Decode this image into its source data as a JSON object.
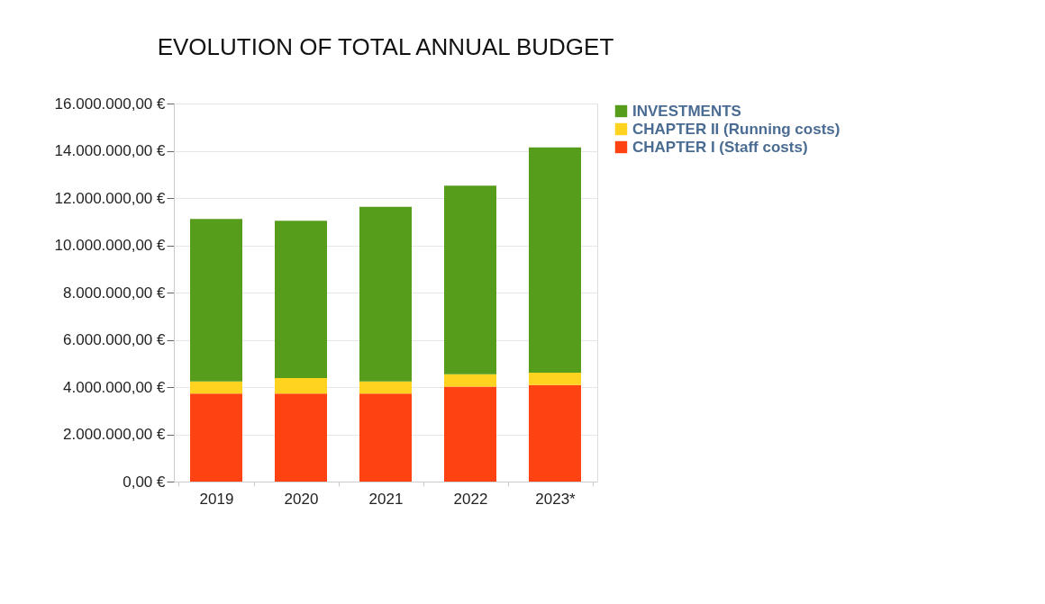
{
  "chart_data": {
    "type": "bar",
    "title": "EVOLUTION OF TOTAL ANNUAL BUDGET",
    "stacked": true,
    "categories": [
      "2019",
      "2020",
      "2021",
      "2022",
      "2023*"
    ],
    "series": [
      {
        "name": "CHAPTER I (Staff costs)",
        "color": "#ff4211",
        "values": [
          3720000,
          3720000,
          3720000,
          4020000,
          4090000
        ]
      },
      {
        "name": "CHAPTER II (Running costs)",
        "color": "#ffd320",
        "values": [
          520000,
          660000,
          520000,
          520000,
          520000
        ]
      },
      {
        "name": "INVESTMENTS",
        "color": "#579d1c",
        "values": [
          6870000,
          6660000,
          7390000,
          7980000,
          9530000
        ]
      }
    ],
    "ylim": [
      0,
      16000000
    ],
    "yticks": [
      {
        "value": 0,
        "label": "0,00 €"
      },
      {
        "value": 2000000,
        "label": "2.000.000,00 €"
      },
      {
        "value": 4000000,
        "label": "4.000.000,00 €"
      },
      {
        "value": 6000000,
        "label": "6.000.000,00 €"
      },
      {
        "value": 8000000,
        "label": "8.000.000,00 €"
      },
      {
        "value": 10000000,
        "label": "10.000.000,00 €"
      },
      {
        "value": 12000000,
        "label": "12.000.000,00 €"
      },
      {
        "value": 14000000,
        "label": "14.000.000,00 €"
      },
      {
        "value": 16000000,
        "label": "16.000.000,00 €"
      }
    ],
    "grid": "y",
    "legend": "right"
  }
}
